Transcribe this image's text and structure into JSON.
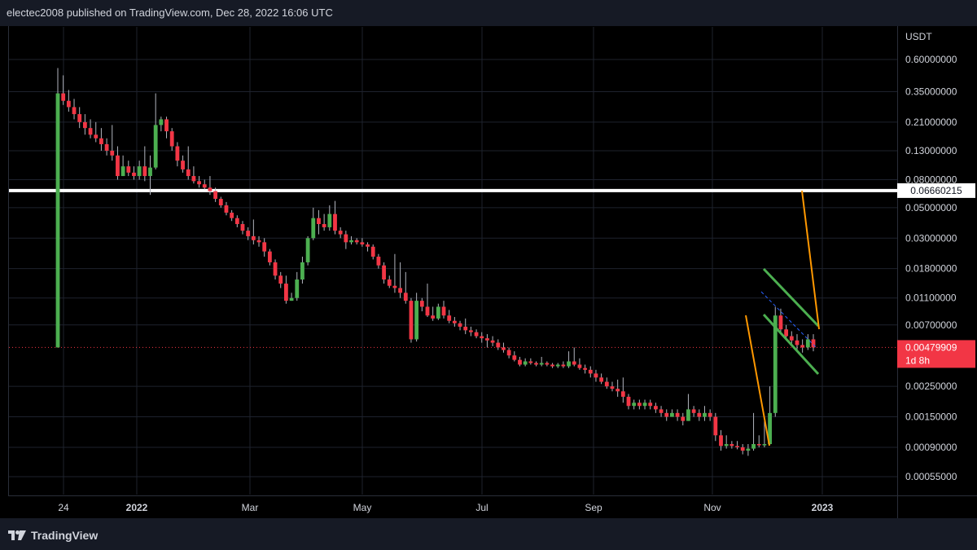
{
  "header": {
    "text": "electec2008 published on TradingView.com, Dec 28, 2022 16:06 UTC"
  },
  "footer": {
    "brand": "TradingView",
    "logo_icon": "tradingview-logo-icon"
  },
  "colors": {
    "up": "#4caf50",
    "down": "#f23645",
    "wick": "#b2b5be",
    "hline": "#ffffff",
    "channel": "#4caf50",
    "arrow": "#ff9800",
    "forecast": "#2962ff",
    "grid": "#1e222d"
  },
  "chart_data": {
    "type": "candlestick",
    "currency": "USDT",
    "scale": "log",
    "y_ticks": [
      "0.60000000",
      "0.35000000",
      "0.21000000",
      "0.13000000",
      "0.08000000",
      "0.05000000",
      "0.03000000",
      "0.01800000",
      "0.01100000",
      "0.00700000",
      "0.00250000",
      "0.00150000",
      "0.00090000",
      "0.00055000"
    ],
    "x_ticks": [
      "24",
      "2022",
      "Mar",
      "May",
      "Jul",
      "Sep",
      "Nov",
      "2023"
    ],
    "horizontal_line": {
      "value": 0.0666,
      "label": "0.06660215"
    },
    "last_price": {
      "value": 0.004799,
      "label": "0.00479909",
      "countdown": "1d 8h"
    },
    "candles": [
      [
        0.0048,
        0.34,
        0.52,
        0.0048
      ],
      [
        0.34,
        0.3,
        0.46,
        0.28
      ],
      [
        0.3,
        0.27,
        0.36,
        0.25
      ],
      [
        0.27,
        0.24,
        0.31,
        0.22
      ],
      [
        0.24,
        0.21,
        0.27,
        0.19
      ],
      [
        0.21,
        0.19,
        0.24,
        0.17
      ],
      [
        0.19,
        0.17,
        0.22,
        0.16
      ],
      [
        0.17,
        0.16,
        0.21,
        0.15
      ],
      [
        0.16,
        0.145,
        0.19,
        0.13
      ],
      [
        0.145,
        0.13,
        0.16,
        0.12
      ],
      [
        0.13,
        0.12,
        0.2,
        0.11
      ],
      [
        0.12,
        0.085,
        0.14,
        0.08
      ],
      [
        0.085,
        0.1,
        0.12,
        0.085
      ],
      [
        0.1,
        0.09,
        0.11,
        0.085
      ],
      [
        0.09,
        0.085,
        0.1,
        0.08
      ],
      [
        0.085,
        0.1,
        0.11,
        0.08
      ],
      [
        0.1,
        0.085,
        0.14,
        0.078
      ],
      [
        0.085,
        0.098,
        0.12,
        0.062
      ],
      [
        0.098,
        0.2,
        0.34,
        0.095
      ],
      [
        0.2,
        0.22,
        0.23,
        0.18
      ],
      [
        0.22,
        0.18,
        0.23,
        0.16
      ],
      [
        0.18,
        0.14,
        0.19,
        0.13
      ],
      [
        0.14,
        0.11,
        0.15,
        0.1
      ],
      [
        0.11,
        0.095,
        0.12,
        0.09
      ],
      [
        0.095,
        0.085,
        0.14,
        0.08
      ],
      [
        0.085,
        0.078,
        0.1,
        0.075
      ],
      [
        0.078,
        0.074,
        0.085,
        0.07
      ],
      [
        0.074,
        0.07,
        0.08,
        0.068
      ],
      [
        0.07,
        0.066,
        0.085,
        0.062
      ],
      [
        0.066,
        0.058,
        0.07,
        0.055
      ],
      [
        0.058,
        0.052,
        0.06,
        0.05
      ],
      [
        0.052,
        0.046,
        0.055,
        0.044
      ],
      [
        0.046,
        0.042,
        0.048,
        0.04
      ],
      [
        0.042,
        0.038,
        0.044,
        0.036
      ],
      [
        0.038,
        0.034,
        0.04,
        0.032
      ],
      [
        0.034,
        0.031,
        0.036,
        0.029
      ],
      [
        0.031,
        0.029,
        0.041,
        0.027
      ],
      [
        0.029,
        0.028,
        0.031,
        0.026
      ],
      [
        0.028,
        0.024,
        0.03,
        0.022
      ],
      [
        0.024,
        0.02,
        0.025,
        0.019
      ],
      [
        0.02,
        0.016,
        0.021,
        0.015
      ],
      [
        0.016,
        0.014,
        0.017,
        0.013
      ],
      [
        0.014,
        0.0105,
        0.016,
        0.01
      ],
      [
        0.0105,
        0.011,
        0.012,
        0.0105
      ],
      [
        0.011,
        0.015,
        0.017,
        0.0105
      ],
      [
        0.015,
        0.02,
        0.022,
        0.014
      ],
      [
        0.02,
        0.03,
        0.031,
        0.019
      ],
      [
        0.03,
        0.042,
        0.05,
        0.029
      ],
      [
        0.042,
        0.038,
        0.048,
        0.032
      ],
      [
        0.038,
        0.036,
        0.045,
        0.034
      ],
      [
        0.036,
        0.045,
        0.052,
        0.034
      ],
      [
        0.045,
        0.034,
        0.056,
        0.032
      ],
      [
        0.034,
        0.032,
        0.036,
        0.03
      ],
      [
        0.032,
        0.028,
        0.034,
        0.025
      ],
      [
        0.028,
        0.029,
        0.031,
        0.027
      ],
      [
        0.029,
        0.028,
        0.03,
        0.027
      ],
      [
        0.028,
        0.027,
        0.03,
        0.026
      ],
      [
        0.027,
        0.026,
        0.028,
        0.024
      ],
      [
        0.026,
        0.022,
        0.027,
        0.021
      ],
      [
        0.022,
        0.019,
        0.023,
        0.018
      ],
      [
        0.019,
        0.015,
        0.02,
        0.014
      ],
      [
        0.015,
        0.0135,
        0.016,
        0.013
      ],
      [
        0.0135,
        0.013,
        0.023,
        0.012
      ],
      [
        0.013,
        0.012,
        0.02,
        0.011
      ],
      [
        0.012,
        0.0105,
        0.017,
        0.01
      ],
      [
        0.0105,
        0.0055,
        0.011,
        0.0052
      ],
      [
        0.0055,
        0.0105,
        0.012,
        0.0053
      ],
      [
        0.0105,
        0.0095,
        0.011,
        0.0088
      ],
      [
        0.0095,
        0.0082,
        0.014,
        0.008
      ],
      [
        0.0082,
        0.0078,
        0.0095,
        0.0075
      ],
      [
        0.0078,
        0.0095,
        0.01,
        0.0076
      ],
      [
        0.0095,
        0.0082,
        0.0105,
        0.0078
      ],
      [
        0.0082,
        0.0075,
        0.009,
        0.0072
      ],
      [
        0.0075,
        0.0072,
        0.008,
        0.0068
      ],
      [
        0.0072,
        0.0068,
        0.0075,
        0.0064
      ],
      [
        0.0068,
        0.0064,
        0.0078,
        0.006
      ],
      [
        0.0064,
        0.0062,
        0.0068,
        0.0058
      ],
      [
        0.0062,
        0.0058,
        0.0065,
        0.0056
      ],
      [
        0.0058,
        0.0056,
        0.0062,
        0.0052
      ],
      [
        0.0056,
        0.0054,
        0.006,
        0.0048
      ],
      [
        0.0054,
        0.0052,
        0.0058,
        0.0049
      ],
      [
        0.0052,
        0.0048,
        0.0055,
        0.0046
      ],
      [
        0.0048,
        0.0046,
        0.0052,
        0.0044
      ],
      [
        0.0046,
        0.0042,
        0.0048,
        0.004
      ],
      [
        0.0042,
        0.0039,
        0.0045,
        0.0038
      ],
      [
        0.0039,
        0.0036,
        0.0041,
        0.0035
      ],
      [
        0.0036,
        0.0038,
        0.004,
        0.0035
      ],
      [
        0.0038,
        0.0037,
        0.004,
        0.0036
      ],
      [
        0.0037,
        0.0036,
        0.0038,
        0.0035
      ],
      [
        0.0036,
        0.0037,
        0.0041,
        0.0035
      ],
      [
        0.0037,
        0.0036,
        0.0038,
        0.0035
      ],
      [
        0.0036,
        0.0035,
        0.0037,
        0.0034
      ],
      [
        0.0035,
        0.0036,
        0.0037,
        0.0034
      ],
      [
        0.0036,
        0.0035,
        0.0038,
        0.0034
      ],
      [
        0.0035,
        0.0038,
        0.0045,
        0.0034
      ],
      [
        0.0038,
        0.0036,
        0.0048,
        0.0035
      ],
      [
        0.0036,
        0.0034,
        0.004,
        0.0033
      ],
      [
        0.0034,
        0.0033,
        0.0036,
        0.0031
      ],
      [
        0.0033,
        0.0031,
        0.0035,
        0.0029
      ],
      [
        0.0031,
        0.0029,
        0.0033,
        0.0027
      ],
      [
        0.0029,
        0.0027,
        0.0031,
        0.0026
      ],
      [
        0.0027,
        0.0025,
        0.0029,
        0.0024
      ],
      [
        0.0025,
        0.0024,
        0.0027,
        0.0023
      ],
      [
        0.0024,
        0.0023,
        0.0028,
        0.0021
      ],
      [
        0.0023,
        0.0021,
        0.0029,
        0.0019
      ],
      [
        0.0021,
        0.0018,
        0.0022,
        0.0017
      ],
      [
        0.0018,
        0.0019,
        0.002,
        0.0017
      ],
      [
        0.0019,
        0.0018,
        0.002,
        0.0017
      ],
      [
        0.0018,
        0.0019,
        0.002,
        0.0017
      ],
      [
        0.0019,
        0.0018,
        0.002,
        0.0017
      ],
      [
        0.0018,
        0.0017,
        0.0019,
        0.0016
      ],
      [
        0.0017,
        0.0016,
        0.0018,
        0.0015
      ],
      [
        0.0016,
        0.0015,
        0.0017,
        0.0014
      ],
      [
        0.0015,
        0.0016,
        0.0017,
        0.0015
      ],
      [
        0.0016,
        0.0015,
        0.0017,
        0.0014
      ],
      [
        0.0015,
        0.0014,
        0.0016,
        0.0013
      ],
      [
        0.0014,
        0.0017,
        0.0022,
        0.0014
      ],
      [
        0.0017,
        0.0016,
        0.0018,
        0.0015
      ],
      [
        0.0016,
        0.0015,
        0.0017,
        0.0014
      ],
      [
        0.0015,
        0.0016,
        0.0018,
        0.0014
      ],
      [
        0.0016,
        0.0015,
        0.0017,
        0.0014
      ],
      [
        0.0015,
        0.0011,
        0.0016,
        0.001
      ],
      [
        0.0011,
        0.00092,
        0.0012,
        0.00085
      ],
      [
        0.00092,
        0.00095,
        0.0011,
        0.00088
      ],
      [
        0.00095,
        0.00092,
        0.001,
        0.00088
      ],
      [
        0.00092,
        0.0009,
        0.001,
        0.00087
      ],
      [
        0.0009,
        0.00085,
        0.00095,
        0.0008
      ],
      [
        0.00085,
        0.00088,
        0.00095,
        0.00078
      ],
      [
        0.00088,
        0.00095,
        0.0016,
        0.00085
      ],
      [
        0.00095,
        0.00093,
        0.0011,
        0.0009
      ],
      [
        0.00093,
        0.00095,
        0.0014,
        0.0009
      ],
      [
        0.00095,
        0.0016,
        0.0025,
        0.00094
      ],
      [
        0.0016,
        0.0082,
        0.0095,
        0.0015
      ],
      [
        0.0082,
        0.0065,
        0.0092,
        0.006
      ],
      [
        0.0065,
        0.0058,
        0.007,
        0.0054
      ],
      [
        0.0058,
        0.0054,
        0.0063,
        0.005
      ],
      [
        0.0054,
        0.005,
        0.006,
        0.0046
      ],
      [
        0.005,
        0.0048,
        0.0055,
        0.0044
      ],
      [
        0.0048,
        0.0055,
        0.006,
        0.0046
      ],
      [
        0.0055,
        0.0048,
        0.006,
        0.0045
      ]
    ]
  }
}
